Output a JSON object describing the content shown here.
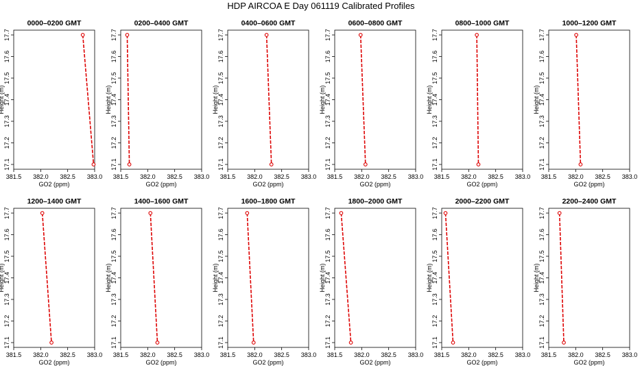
{
  "page_title": "HDP AIRCOA E  Day 061119  Calibrated Profiles",
  "series_color": "#dd0000",
  "chart_data": [
    {
      "type": "line",
      "title": "0000–0200 GMT",
      "xlabel": "GO2 (ppm)",
      "ylabel": "Height (m)",
      "xlim": [
        381.5,
        383.0
      ],
      "ylim": [
        17.1,
        17.7
      ],
      "xticks": [
        "381.5",
        "382.0",
        "382.5",
        "383.0"
      ],
      "yticks": [
        "17.1",
        "17.2",
        "17.3",
        "17.4",
        "17.5",
        "17.6",
        "17.7"
      ],
      "points": [
        {
          "x": 382.78,
          "y": 17.7
        },
        {
          "x": 382.98,
          "y": 17.1
        }
      ]
    },
    {
      "type": "line",
      "title": "0200–0400 GMT",
      "xlabel": "GO2 (ppm)",
      "ylabel": "Height (m)",
      "xlim": [
        381.5,
        383.0
      ],
      "ylim": [
        17.1,
        17.7
      ],
      "xticks": [
        "381.5",
        "382.0",
        "382.5",
        "383.0"
      ],
      "yticks": [
        "17.1",
        "17.2",
        "17.3",
        "17.4",
        "17.5",
        "17.6",
        "17.7"
      ],
      "points": [
        {
          "x": 381.62,
          "y": 17.7
        },
        {
          "x": 381.66,
          "y": 17.1
        }
      ]
    },
    {
      "type": "line",
      "title": "0400–0600 GMT",
      "xlabel": "GO2 (ppm)",
      "ylabel": "Height (m)",
      "xlim": [
        381.5,
        383.0
      ],
      "ylim": [
        17.1,
        17.7
      ],
      "xticks": [
        "381.5",
        "382.0",
        "382.5",
        "383.0"
      ],
      "yticks": [
        "17.1",
        "17.2",
        "17.3",
        "17.4",
        "17.5",
        "17.6",
        "17.7"
      ],
      "points": [
        {
          "x": 382.22,
          "y": 17.7
        },
        {
          "x": 382.31,
          "y": 17.1
        }
      ]
    },
    {
      "type": "line",
      "title": "0600–0800 GMT",
      "xlabel": "GO2 (ppm)",
      "ylabel": "Height (m)",
      "xlim": [
        381.5,
        383.0
      ],
      "ylim": [
        17.1,
        17.7
      ],
      "xticks": [
        "381.5",
        "382.0",
        "382.5",
        "383.0"
      ],
      "yticks": [
        "17.1",
        "17.2",
        "17.3",
        "17.4",
        "17.5",
        "17.6",
        "17.7"
      ],
      "points": [
        {
          "x": 381.98,
          "y": 17.7
        },
        {
          "x": 382.07,
          "y": 17.1
        }
      ]
    },
    {
      "type": "line",
      "title": "0800–1000 GMT",
      "xlabel": "GO2 (ppm)",
      "ylabel": "Height (m)",
      "xlim": [
        381.5,
        383.0
      ],
      "ylim": [
        17.1,
        17.7
      ],
      "xticks": [
        "381.5",
        "382.0",
        "382.5",
        "383.0"
      ],
      "yticks": [
        "17.1",
        "17.2",
        "17.3",
        "17.4",
        "17.5",
        "17.6",
        "17.7"
      ],
      "points": [
        {
          "x": 382.15,
          "y": 17.7
        },
        {
          "x": 382.18,
          "y": 17.1
        }
      ]
    },
    {
      "type": "line",
      "title": "1000–1200 GMT",
      "xlabel": "GO2 (ppm)",
      "ylabel": "Height (m)",
      "xlim": [
        381.5,
        383.0
      ],
      "ylim": [
        17.1,
        17.7
      ],
      "xticks": [
        "381.5",
        "382.0",
        "382.5",
        "383.0"
      ],
      "yticks": [
        "17.1",
        "17.2",
        "17.3",
        "17.4",
        "17.5",
        "17.6",
        "17.7"
      ],
      "points": [
        {
          "x": 382.01,
          "y": 17.7
        },
        {
          "x": 382.09,
          "y": 17.1
        }
      ]
    },
    {
      "type": "line",
      "title": "1200–1400 GMT",
      "xlabel": "GO2 (ppm)",
      "ylabel": "Height (m)",
      "xlim": [
        381.5,
        383.0
      ],
      "ylim": [
        17.1,
        17.7
      ],
      "xticks": [
        "381.5",
        "382.0",
        "382.5",
        "383.0"
      ],
      "yticks": [
        "17.1",
        "17.2",
        "17.3",
        "17.4",
        "17.5",
        "17.6",
        "17.7"
      ],
      "points": [
        {
          "x": 382.03,
          "y": 17.7
        },
        {
          "x": 382.2,
          "y": 17.1
        }
      ]
    },
    {
      "type": "line",
      "title": "1400–1600 GMT",
      "xlabel": "GO2 (ppm)",
      "ylabel": "Height (m)",
      "xlim": [
        381.5,
        383.0
      ],
      "ylim": [
        17.1,
        17.7
      ],
      "xticks": [
        "381.5",
        "382.0",
        "382.5",
        "383.0"
      ],
      "yticks": [
        "17.1",
        "17.2",
        "17.3",
        "17.4",
        "17.5",
        "17.6",
        "17.7"
      ],
      "points": [
        {
          "x": 382.05,
          "y": 17.7
        },
        {
          "x": 382.18,
          "y": 17.1
        }
      ]
    },
    {
      "type": "line",
      "title": "1600–1800 GMT",
      "xlabel": "GO2 (ppm)",
      "ylabel": "Height (m)",
      "xlim": [
        381.5,
        383.0
      ],
      "ylim": [
        17.1,
        17.7
      ],
      "xticks": [
        "381.5",
        "382.0",
        "382.5",
        "383.0"
      ],
      "yticks": [
        "17.1",
        "17.2",
        "17.3",
        "17.4",
        "17.5",
        "17.6",
        "17.7"
      ],
      "points": [
        {
          "x": 381.86,
          "y": 17.7
        },
        {
          "x": 381.98,
          "y": 17.1
        }
      ]
    },
    {
      "type": "line",
      "title": "1800–2000 GMT",
      "xlabel": "GO2 (ppm)",
      "ylabel": "Height (m)",
      "xlim": [
        381.5,
        383.0
      ],
      "ylim": [
        17.1,
        17.7
      ],
      "xticks": [
        "381.5",
        "382.0",
        "382.5",
        "383.0"
      ],
      "yticks": [
        "17.1",
        "17.2",
        "17.3",
        "17.4",
        "17.5",
        "17.6",
        "17.7"
      ],
      "points": [
        {
          "x": 381.62,
          "y": 17.7
        },
        {
          "x": 381.8,
          "y": 17.1
        }
      ]
    },
    {
      "type": "line",
      "title": "2000–2200 GMT",
      "xlabel": "GO2 (ppm)",
      "ylabel": "Height (m)",
      "xlim": [
        381.5,
        383.0
      ],
      "ylim": [
        17.1,
        17.7
      ],
      "xticks": [
        "381.5",
        "382.0",
        "382.5",
        "383.0"
      ],
      "yticks": [
        "17.1",
        "17.2",
        "17.3",
        "17.4",
        "17.5",
        "17.6",
        "17.7"
      ],
      "points": [
        {
          "x": 381.57,
          "y": 17.7
        },
        {
          "x": 381.71,
          "y": 17.1
        }
      ]
    },
    {
      "type": "line",
      "title": "2200–2400 GMT",
      "xlabel": "GO2 (ppm)",
      "ylabel": "Height (m)",
      "xlim": [
        381.5,
        383.0
      ],
      "ylim": [
        17.1,
        17.7
      ],
      "xticks": [
        "381.5",
        "382.0",
        "382.5",
        "383.0"
      ],
      "yticks": [
        "17.1",
        "17.2",
        "17.3",
        "17.4",
        "17.5",
        "17.6",
        "17.7"
      ],
      "points": [
        {
          "x": 381.7,
          "y": 17.7
        },
        {
          "x": 381.78,
          "y": 17.1
        }
      ]
    }
  ]
}
